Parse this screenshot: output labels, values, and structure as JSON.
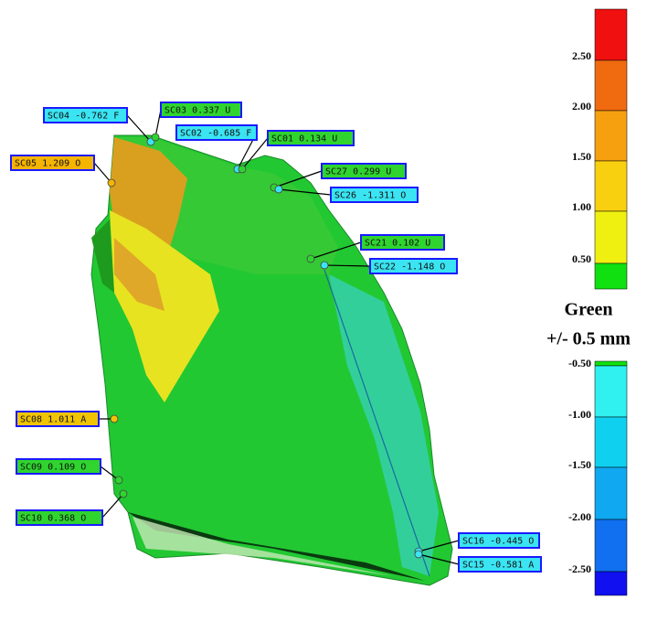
{
  "callouts": [
    "SC04 -0.762 F",
    "SC03 0.337 U",
    "SC02 -0.685 F",
    "SC01 0.134 U",
    "SC05 1.209 O",
    "SC27 0.299 U",
    "SC26 -1.311 O",
    "SC21 0.102 U",
    "SC22 -1.148 O",
    "SC08 1.011 A",
    "SC09 0.109 O",
    "SC10 0.368 O",
    "SC16 -0.445 O",
    "SC15 -0.581 A"
  ],
  "scale": {
    "upper_labels": [
      "2.50",
      "2.00",
      "1.50",
      "1.00",
      "0.50"
    ],
    "caption": "Green",
    "tolerance": "+/- 0.5 mm",
    "lower_labels": [
      "-0.50",
      "-1.00",
      "-1.50",
      "-2.00",
      "-2.50"
    ]
  }
}
